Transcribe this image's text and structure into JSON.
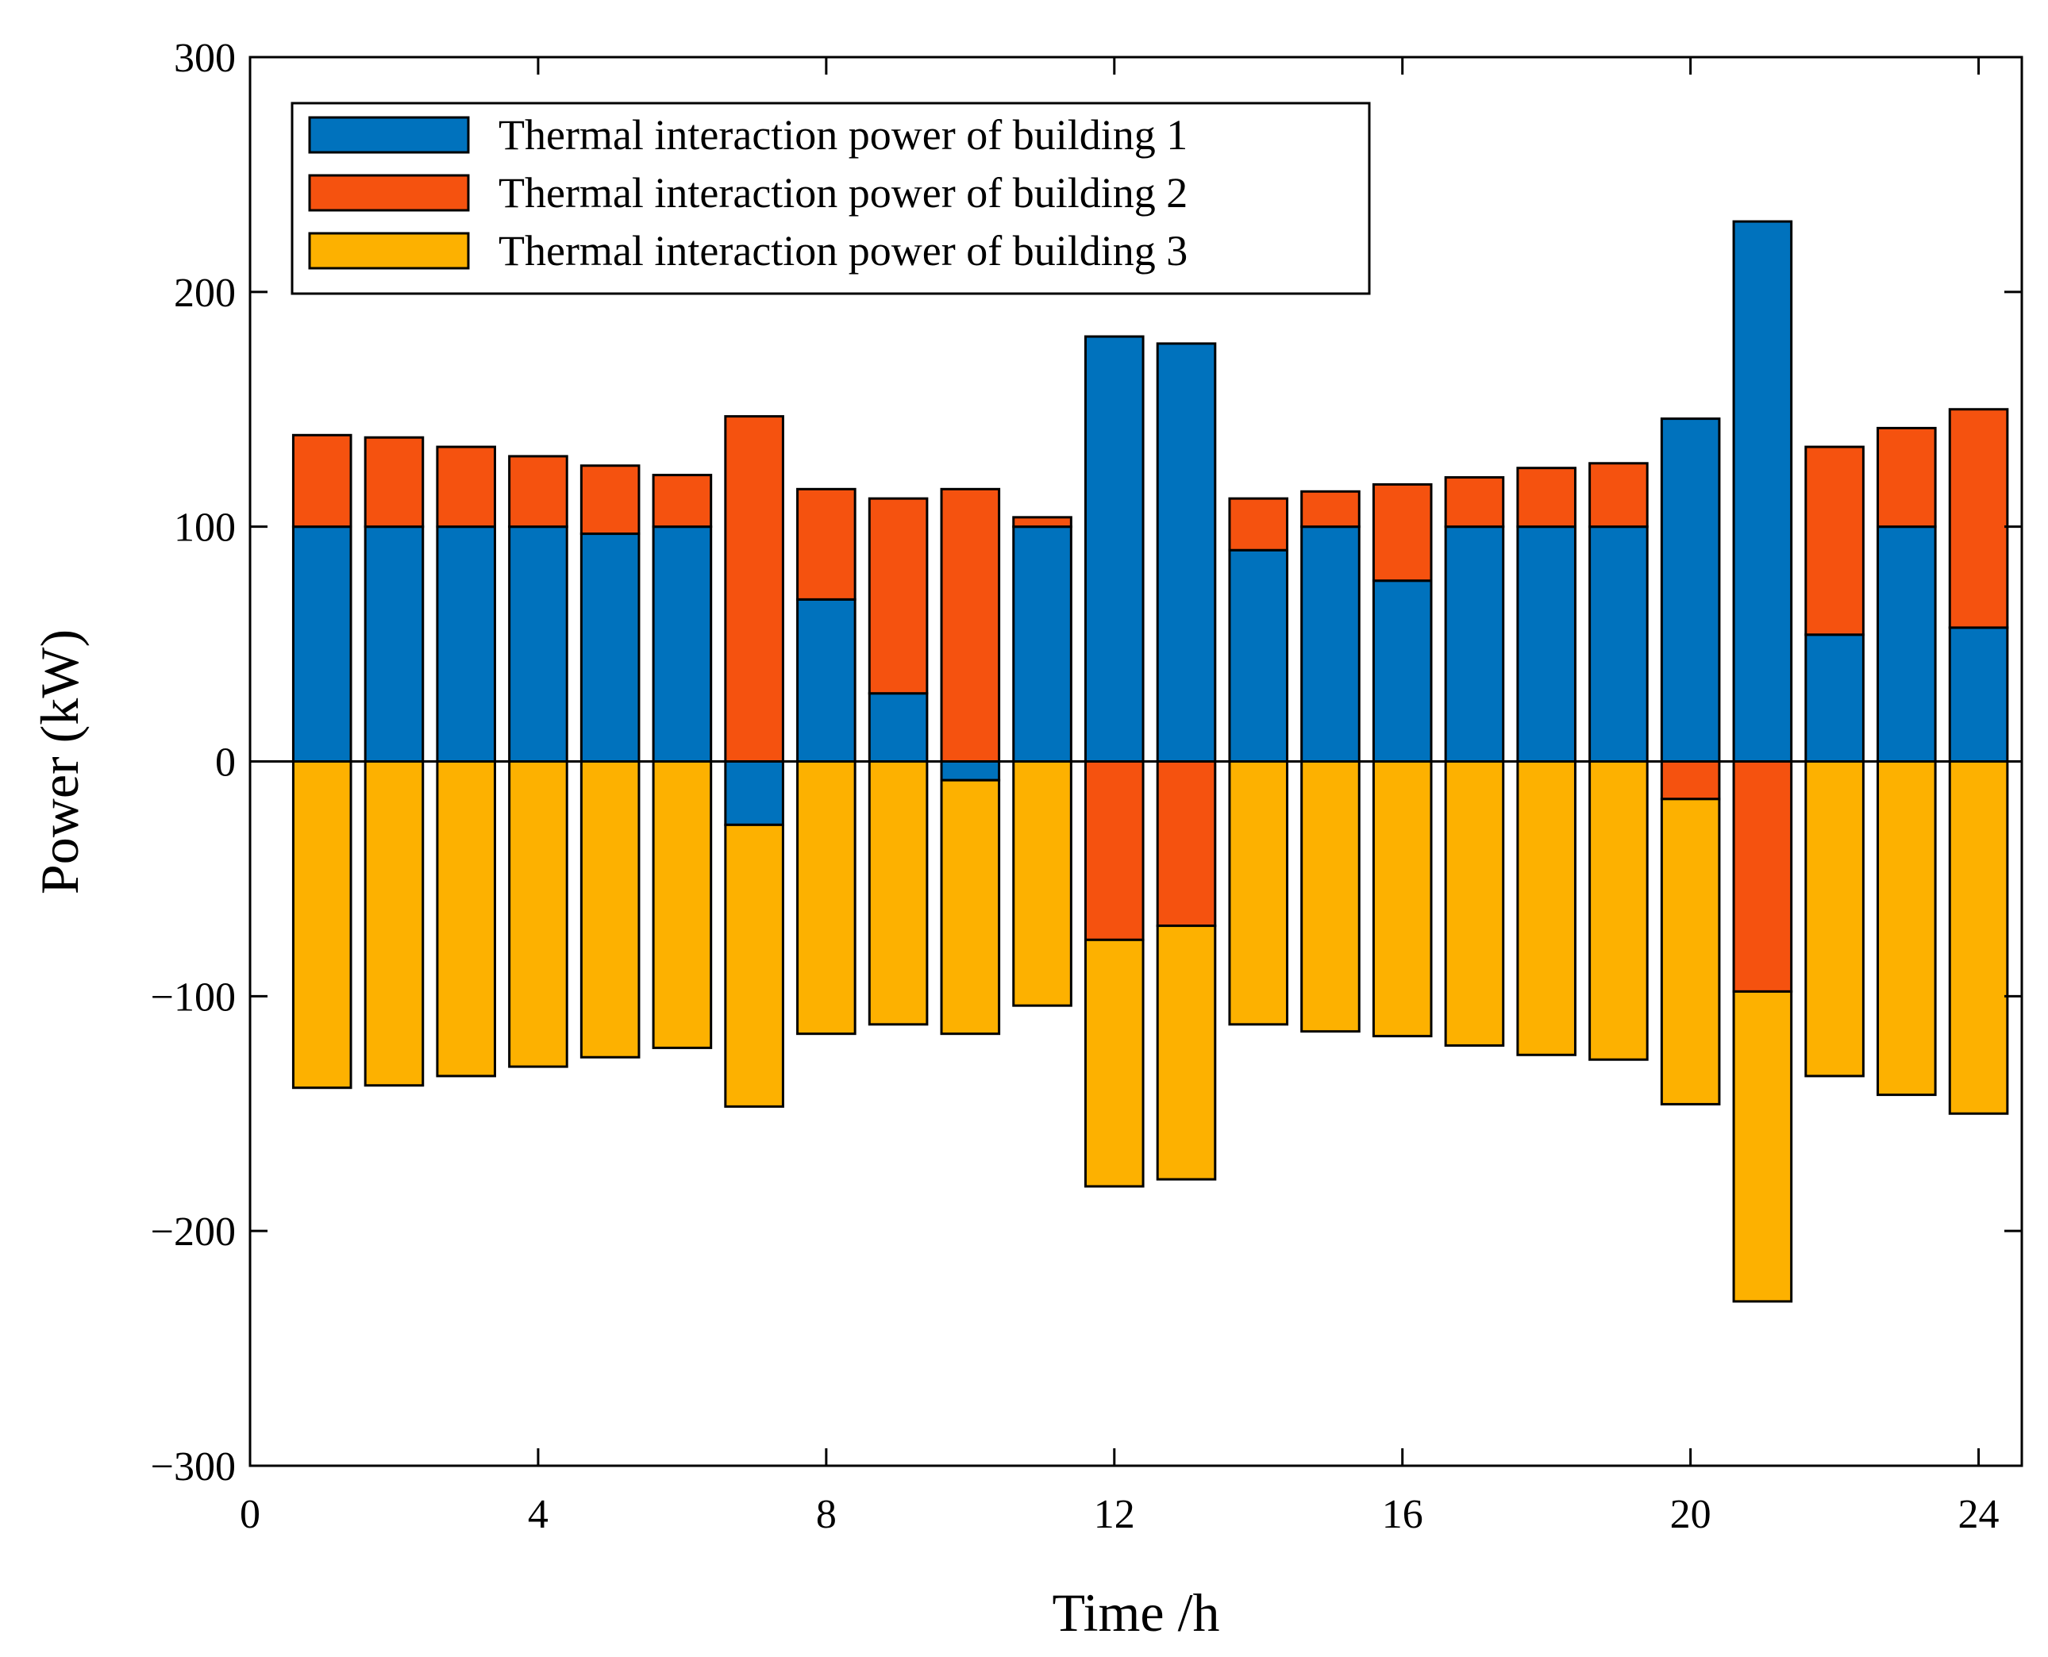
{
  "chart_data": {
    "type": "bar",
    "stacked": true,
    "xlabel": "Time /h",
    "ylabel": "Power (kW)",
    "xlim": [
      0,
      24.6
    ],
    "ylim": [
      -300,
      300
    ],
    "xticks": [
      0,
      4,
      8,
      12,
      16,
      20,
      24
    ],
    "yticks": [
      -300,
      -200,
      -100,
      0,
      100,
      200,
      300
    ],
    "x": [
      1,
      2,
      3,
      4,
      5,
      6,
      7,
      8,
      9,
      10,
      11,
      12,
      13,
      14,
      15,
      16,
      17,
      18,
      19,
      20,
      21,
      22,
      23,
      24
    ],
    "legend_position": "top-left",
    "series": [
      {
        "name": "Thermal interaction power of building 1",
        "color": "#0072BD",
        "values": [
          100,
          100,
          100,
          100,
          97,
          100,
          -27,
          69,
          29,
          -8,
          100,
          181,
          178,
          90,
          100,
          77,
          100,
          100,
          100,
          146,
          230,
          54,
          100,
          57
        ]
      },
      {
        "name": "Thermal interaction power of building 2",
        "color": "#F5520F",
        "values": [
          39,
          38,
          34,
          30,
          29,
          22,
          147,
          47,
          83,
          116,
          4,
          -76,
          -70,
          22,
          15,
          41,
          21,
          25,
          27,
          -16,
          -98,
          80,
          42,
          93
        ]
      },
      {
        "name": "Thermal interaction power of building 3",
        "color": "#FDB100",
        "values": [
          -139,
          -138,
          -134,
          -130,
          -126,
          -122,
          -120,
          -116,
          -112,
          -108,
          -104,
          -105,
          -108,
          -112,
          -115,
          -117,
          -121,
          -125,
          -127,
          -130,
          -132,
          -134,
          -142,
          -150
        ]
      }
    ]
  }
}
